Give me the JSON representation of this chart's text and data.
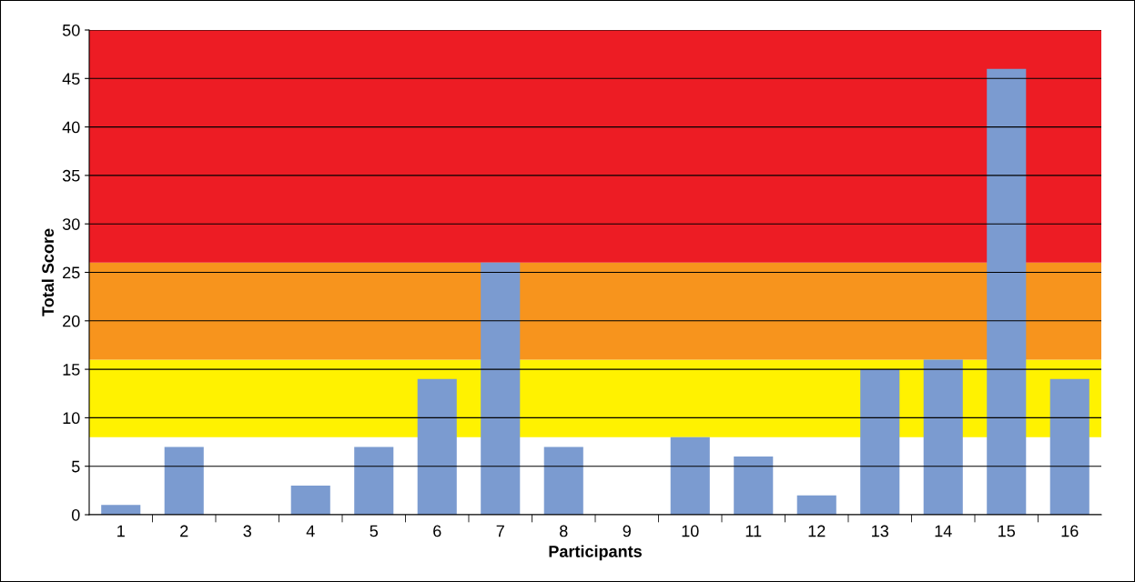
{
  "chart_data": {
    "type": "bar",
    "xlabel": "Participants",
    "ylabel": "Total Score",
    "categories": [
      "1",
      "2",
      "3",
      "4",
      "5",
      "6",
      "7",
      "8",
      "9",
      "10",
      "11",
      "12",
      "13",
      "14",
      "15",
      "16"
    ],
    "values": [
      1,
      7,
      0,
      3,
      7,
      14,
      26,
      7,
      0,
      8,
      6,
      2,
      15,
      16,
      46,
      14
    ],
    "color": "#7b9bd0",
    "ylim": [
      0,
      50
    ],
    "yticks": [
      0,
      5,
      10,
      15,
      20,
      25,
      30,
      35,
      40,
      45,
      50
    ],
    "grid": "y",
    "bands": [
      {
        "axis": "y",
        "from": 8,
        "to": 16,
        "color": "#fff200"
      },
      {
        "axis": "y",
        "from": 16,
        "to": 26,
        "color": "#f7941d"
      },
      {
        "axis": "y",
        "from": 26,
        "to": 50,
        "color": "#ed1c24"
      }
    ]
  }
}
